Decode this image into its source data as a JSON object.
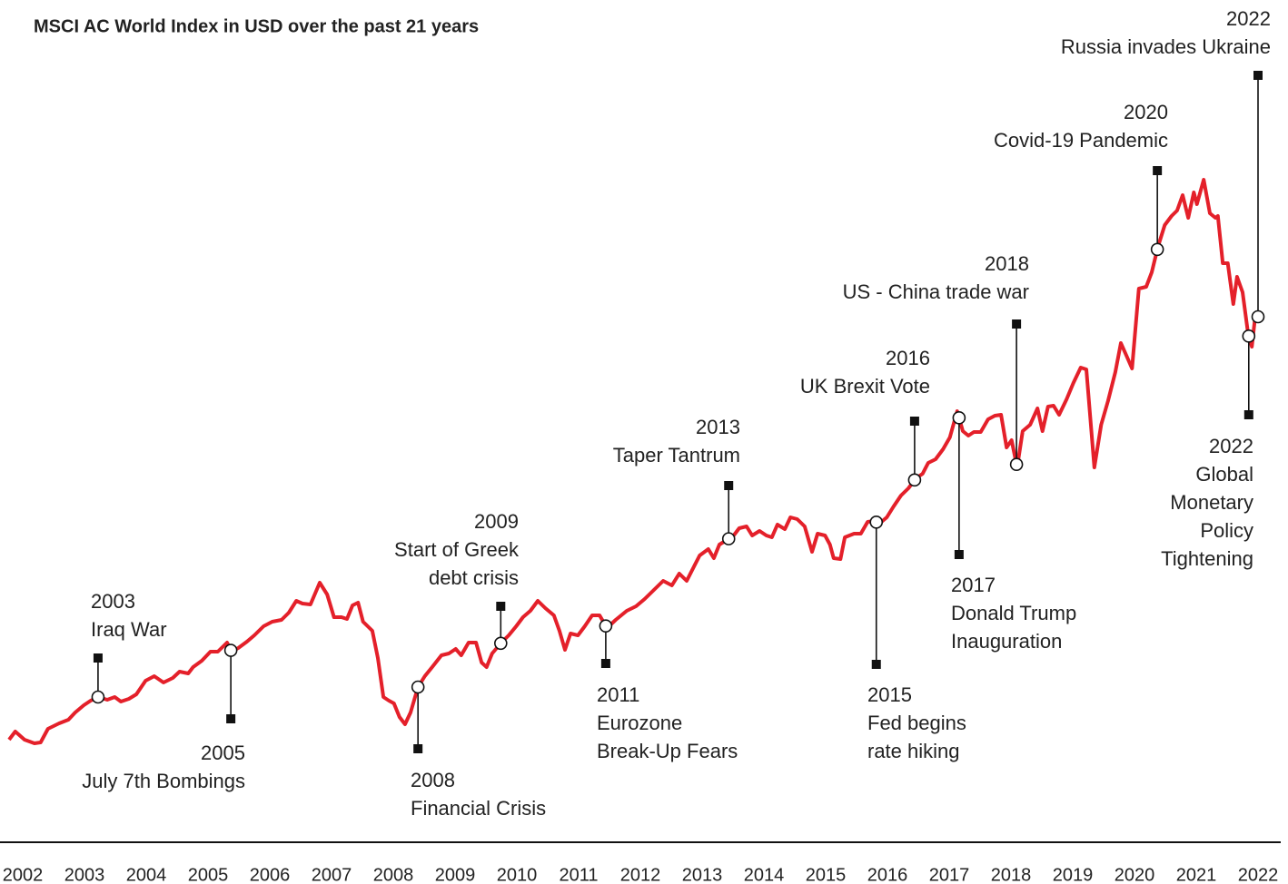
{
  "chart_data": {
    "type": "line",
    "title": "MSCI AC World Index in USD over the past 21 years",
    "xlim": [
      2001.78,
      2022.2
    ],
    "xticks": [
      2002,
      2003,
      2004,
      2005,
      2006,
      2007,
      2008,
      2009,
      2010,
      2011,
      2012,
      2013,
      2014,
      2015,
      2016,
      2017,
      2018,
      2019,
      2020,
      2021,
      2022
    ],
    "ylim": [
      0,
      820
    ],
    "series": [
      {
        "color": "#e4202a",
        "x": [
          2001.78,
          2001.88,
          2002.03,
          2002.19,
          2002.29,
          2002.41,
          2002.59,
          2002.74,
          2002.85,
          2002.99,
          2003.1,
          2003.22,
          2003.37,
          2003.49,
          2003.59,
          2003.72,
          2003.84,
          2003.99,
          2004.13,
          2004.28,
          2004.43,
          2004.54,
          2004.68,
          2004.76,
          2004.9,
          2005.04,
          2005.16,
          2005.31,
          2005.38,
          2005.49,
          2005.63,
          2005.75,
          2005.9,
          2006.04,
          2006.19,
          2006.31,
          2006.43,
          2006.53,
          2006.66,
          2006.81,
          2006.93,
          2007.04,
          2007.16,
          2007.25,
          2007.34,
          2007.43,
          2007.51,
          2007.66,
          2007.75,
          2007.84,
          2007.93,
          2008.01,
          2008.1,
          2008.19,
          2008.28,
          2008.4,
          2008.51,
          2008.63,
          2008.78,
          2008.9,
          2009.01,
          2009.1,
          2009.22,
          2009.34,
          2009.43,
          2009.51,
          2009.6,
          2009.75,
          2009.87,
          2009.99,
          2010.1,
          2010.22,
          2010.34,
          2010.46,
          2010.6,
          2010.69,
          2010.78,
          2010.87,
          2010.99,
          2011.1,
          2011.22,
          2011.34,
          2011.46,
          2011.6,
          2011.78,
          2011.93,
          2012.07,
          2012.22,
          2012.37,
          2012.51,
          2012.63,
          2012.75,
          2012.84,
          2012.96,
          2013.1,
          2013.19,
          2013.28,
          2013.4,
          2013.51,
          2013.6,
          2013.72,
          2013.81,
          2013.93,
          2014.04,
          2014.13,
          2014.22,
          2014.34,
          2014.43,
          2014.54,
          2014.66,
          2014.78,
          2014.87,
          2014.99,
          2015.07,
          2015.13,
          2015.24,
          2015.31,
          2015.46,
          2015.57,
          2015.68,
          2015.78,
          2015.87,
          2015.99,
          2016.1,
          2016.22,
          2016.34,
          2016.46,
          2016.57,
          2016.66,
          2016.78,
          2016.9,
          2017.01,
          2017.13,
          2017.22,
          2017.31,
          2017.4,
          2017.51,
          2017.63,
          2017.74,
          2017.84,
          2017.93,
          2018.01,
          2018.1,
          2018.19,
          2018.31,
          2018.43,
          2018.51,
          2018.6,
          2018.69,
          2018.78,
          2018.9,
          2019.01,
          2019.13,
          2019.22,
          2019.35,
          2019.46,
          2019.57,
          2019.69,
          2019.78,
          2019.87,
          2019.96,
          2020.07,
          2020.19,
          2020.28,
          2020.38,
          2020.49,
          2020.6,
          2020.69,
          2020.78,
          2020.87,
          2020.96,
          2021.01,
          2021.12,
          2021.22,
          2021.31,
          2021.35,
          2021.43,
          2021.51,
          2021.6,
          2021.66,
          2021.75,
          2021.84,
          2021.9,
          2021.96,
          2022.01
        ],
        "values": [
          85,
          94,
          85,
          81,
          82,
          97,
          103,
          107,
          115,
          123,
          128,
          132,
          129,
          132,
          127,
          130,
          135,
          150,
          155,
          148,
          153,
          160,
          158,
          165,
          172,
          182,
          182,
          192,
          182,
          186,
          193,
          200,
          210,
          215,
          217,
          225,
          238,
          235,
          234,
          258,
          245,
          220,
          220,
          218,
          233,
          236,
          215,
          205,
          175,
          132,
          128,
          125,
          110,
          102,
          115,
          143,
          155,
          165,
          178,
          180,
          185,
          178,
          192,
          192,
          170,
          165,
          180,
          192,
          200,
          210,
          220,
          227,
          238,
          230,
          222,
          205,
          184,
          202,
          200,
          210,
          222,
          222,
          208,
          217,
          227,
          232,
          240,
          250,
          260,
          255,
          268,
          260,
          272,
          288,
          295,
          285,
          300,
          305,
          310,
          318,
          320,
          310,
          315,
          310,
          308,
          322,
          317,
          330,
          328,
          320,
          292,
          312,
          310,
          300,
          285,
          284,
          308,
          312,
          312,
          325,
          326,
          323,
          330,
          342,
          354,
          362,
          373,
          378,
          390,
          394,
          405,
          418,
          447,
          425,
          420,
          424,
          424,
          438,
          442,
          443,
          407,
          415,
          385,
          425,
          432,
          450,
          425,
          452,
          453,
          443,
          460,
          478,
          495,
          493,
          385,
          432,
          458,
          490,
          522,
          508,
          494,
          582,
          584,
          600,
          628,
          652,
          662,
          668,
          685,
          660,
          688,
          675,
          702,
          665,
          660,
          662,
          610,
          610,
          565,
          595,
          578,
          532,
          518,
          555,
          550
        ]
      }
    ],
    "events": [
      {
        "x": 2003.22,
        "year": "2003",
        "text": [
          "Iraq War"
        ]
      },
      {
        "x": 2005.37,
        "year": "2005",
        "text": [
          "July 7th Bombings"
        ]
      },
      {
        "x": 2008.4,
        "year": "2008",
        "text": [
          "Financial Crisis"
        ]
      },
      {
        "x": 2009.74,
        "year": "2009",
        "text": [
          "Start of Greek",
          "debt crisis"
        ]
      },
      {
        "x": 2011.44,
        "year": "2011",
        "text": [
          "Eurozone",
          "Break-Up Fears"
        ]
      },
      {
        "x": 2013.43,
        "year": "2013",
        "text": [
          "Taper Tantrum"
        ]
      },
      {
        "x": 2015.82,
        "year": "2015",
        "text": [
          "Fed begins",
          "rate hiking"
        ]
      },
      {
        "x": 2016.44,
        "year": "2016",
        "text": [
          "UK Brexit Vote"
        ]
      },
      {
        "x": 2017.16,
        "year": "2017",
        "text": [
          "Donald Trump",
          "Inauguration"
        ]
      },
      {
        "x": 2018.09,
        "year": "2018",
        "text": [
          "US - China trade war"
        ]
      },
      {
        "x": 2020.37,
        "year": "2020",
        "text": [
          "Covid-19 Pandemic"
        ]
      },
      {
        "x": 2021.85,
        "year": "2022",
        "text": [
          "Global",
          "Monetary",
          "Policy",
          "Tightening"
        ]
      },
      {
        "x": 2022.0,
        "year": "2022",
        "text": [
          "Russia invades Ukraine"
        ]
      }
    ]
  }
}
